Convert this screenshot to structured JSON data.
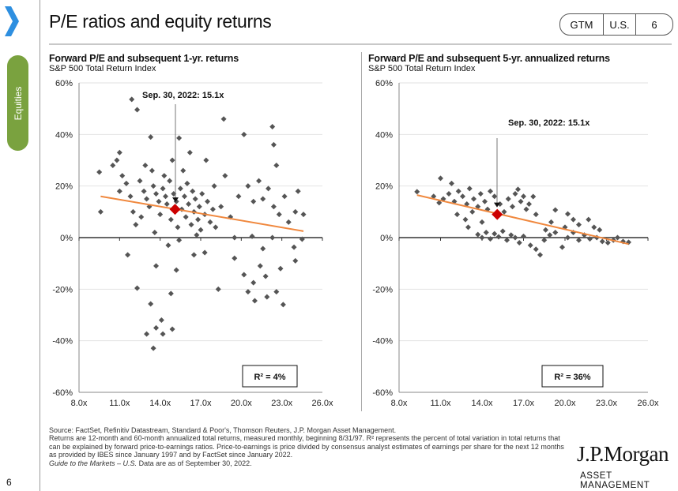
{
  "header": {
    "title": "P/E ratios and equity returns",
    "badge": [
      "GTM",
      "U.S.",
      "6"
    ],
    "section_tab": "Equities",
    "page_number": "6"
  },
  "colors": {
    "points": "#555555",
    "trend": "#f0883e",
    "current": "#cc0000",
    "chevron": "#2e8fe0",
    "tab": "#7aa23f"
  },
  "footer": {
    "source": "Source: FactSet, Refinitiv Datastream, Standard & Poor's, Thomson Reuters, J.P. Morgan Asset Management.",
    "note": "Returns are 12-month and 60-month annualized total returns, measured monthly, beginning 8/31/97. R² represents the percent of total variation in total returns that can be explained by forward price-to-earnings ratios. Price-to-earnings is price divided by consensus analyst estimates of earnings per share for the next 12 months as provided by IBES since January 1997 and by FactSet since January 2022.",
    "guide_italic": "Guide to the Markets – U.S.",
    "guide_rest": " Data are as of September 30, 2022."
  },
  "logo": {
    "name": "J.P.Morgan",
    "sub": "ASSET MANAGEMENT"
  },
  "chart_data": [
    {
      "type": "scatter",
      "title": "Forward P/E and subsequent 1-yr. returns",
      "subtitle": "S&P 500 Total Return Index",
      "xlim": [
        8,
        26
      ],
      "ylim": [
        -60,
        60
      ],
      "xticks": [
        "8.0x",
        "11.0x",
        "14.0x",
        "17.0x",
        "20.0x",
        "23.0x",
        "26.0x"
      ],
      "yticks": [
        "60%",
        "40%",
        "20%",
        "0%",
        "-20%",
        "-40%",
        "-60%"
      ],
      "grid": "horizontal",
      "annotation": "Sep. 30, 2022: 15.1x",
      "r2_label": "R² = 4%",
      "current": [
        15.1,
        11
      ],
      "trend": [
        [
          9.6,
          16
        ],
        [
          24.6,
          2.5
        ]
      ],
      "points": [
        [
          9.5,
          25.4
        ],
        [
          9.6,
          10
        ],
        [
          11.9,
          53.6
        ],
        [
          12.3,
          49.6
        ],
        [
          11.0,
          33
        ],
        [
          13.3,
          39
        ],
        [
          15.4,
          38.6
        ],
        [
          18.7,
          46
        ],
        [
          20.2,
          40
        ],
        [
          22.3,
          43
        ],
        [
          22.4,
          36
        ],
        [
          24.2,
          18
        ],
        [
          24.6,
          9
        ],
        [
          24.5,
          -0.6
        ],
        [
          23.9,
          -3.7
        ],
        [
          24.0,
          -9
        ],
        [
          23.1,
          -26
        ],
        [
          22.6,
          -21
        ],
        [
          20.9,
          -17.5
        ],
        [
          20.2,
          -14.4
        ],
        [
          21.0,
          -24.5
        ],
        [
          21.4,
          -11
        ],
        [
          21.6,
          -4.3
        ],
        [
          19.5,
          -8
        ],
        [
          18.3,
          -20
        ],
        [
          16.5,
          -6.7
        ],
        [
          17.3,
          -5.8
        ],
        [
          14.8,
          -21.7
        ],
        [
          15.2,
          -12.6
        ],
        [
          13.7,
          -11
        ],
        [
          12.3,
          -19.6
        ],
        [
          11.6,
          -6.7
        ],
        [
          13.3,
          -25.7
        ],
        [
          13.0,
          -37.4
        ],
        [
          13.5,
          -42.9
        ],
        [
          14.1,
          -32
        ],
        [
          14.2,
          -37.4
        ],
        [
          14.9,
          -35.5
        ],
        [
          13.7,
          -35
        ],
        [
          12.5,
          22
        ],
        [
          12.8,
          18
        ],
        [
          13.0,
          15
        ],
        [
          13.2,
          12
        ],
        [
          13.5,
          20
        ],
        [
          13.7,
          17
        ],
        [
          13.9,
          14
        ],
        [
          14.0,
          9
        ],
        [
          14.2,
          19
        ],
        [
          14.4,
          16
        ],
        [
          14.5,
          13
        ],
        [
          14.7,
          22
        ],
        [
          14.8,
          7
        ],
        [
          15.0,
          17
        ],
        [
          15.2,
          14
        ],
        [
          15.3,
          4
        ],
        [
          15.5,
          19
        ],
        [
          15.6,
          11
        ],
        [
          15.8,
          16
        ],
        [
          15.9,
          8
        ],
        [
          16.0,
          21
        ],
        [
          16.1,
          13
        ],
        [
          16.3,
          5
        ],
        [
          16.4,
          18
        ],
        [
          16.5,
          10
        ],
        [
          16.6,
          15
        ],
        [
          16.8,
          7
        ],
        [
          16.9,
          12
        ],
        [
          17.0,
          3
        ],
        [
          17.1,
          17
        ],
        [
          17.3,
          9
        ],
        [
          17.5,
          14
        ],
        [
          17.7,
          6
        ],
        [
          17.9,
          11
        ],
        [
          18.1,
          4
        ],
        [
          12.0,
          10
        ],
        [
          11.8,
          16
        ],
        [
          12.2,
          5
        ],
        [
          12.6,
          8
        ],
        [
          11.5,
          21
        ],
        [
          11.2,
          24
        ],
        [
          12.9,
          28
        ],
        [
          13.4,
          26
        ],
        [
          14.3,
          24
        ],
        [
          14.9,
          30
        ],
        [
          15.7,
          26
        ],
        [
          16.2,
          33
        ],
        [
          17.4,
          30
        ],
        [
          18.0,
          20
        ],
        [
          18.5,
          12
        ],
        [
          18.8,
          24
        ],
        [
          19.2,
          8
        ],
        [
          19.8,
          16
        ],
        [
          20.5,
          20
        ],
        [
          20.9,
          14
        ],
        [
          21.3,
          22
        ],
        [
          21.6,
          15
        ],
        [
          22.0,
          19
        ],
        [
          22.4,
          12
        ],
        [
          22.6,
          28
        ],
        [
          22.8,
          9
        ],
        [
          23.2,
          16
        ],
        [
          23.5,
          6
        ],
        [
          24.0,
          10
        ],
        [
          11.0,
          18
        ],
        [
          10.5,
          28
        ],
        [
          10.8,
          30
        ],
        [
          13.6,
          2
        ],
        [
          14.6,
          -3
        ],
        [
          15.4,
          -1
        ],
        [
          16.7,
          1
        ],
        [
          19.5,
          0
        ],
        [
          20.8,
          0.5
        ],
        [
          22.3,
          0
        ],
        [
          21.8,
          -15
        ],
        [
          22.9,
          -12
        ],
        [
          20.5,
          -21
        ],
        [
          21.9,
          -23
        ]
      ]
    },
    {
      "type": "scatter",
      "title": "Forward P/E and subsequent 5-yr. annualized returns",
      "subtitle": "S&P 500 Total Return Index",
      "xlim": [
        8,
        26
      ],
      "ylim": [
        -60,
        60
      ],
      "xticks": [
        "8.0x",
        "11.0x",
        "14.0x",
        "17.0x",
        "20.0x",
        "23.0x",
        "26.0x"
      ],
      "yticks": [
        "60%",
        "40%",
        "20%",
        "0%",
        "-20%",
        "-40%",
        "-60%"
      ],
      "grid": "horizontal",
      "annotation": "Sep. 30, 2022: 15.1x",
      "r2_label": "R² = 36%",
      "current": [
        15.1,
        9
      ],
      "trend": [
        [
          9.3,
          16.5
        ],
        [
          24.6,
          -2.5
        ]
      ],
      "points": [
        [
          9.3,
          17.8
        ],
        [
          11.0,
          23
        ],
        [
          11.8,
          21
        ],
        [
          10.9,
          13.5
        ],
        [
          10.5,
          16
        ],
        [
          11.2,
          15
        ],
        [
          11.6,
          17
        ],
        [
          12.0,
          14
        ],
        [
          12.3,
          18
        ],
        [
          12.6,
          16
        ],
        [
          12.9,
          13
        ],
        [
          13.1,
          19
        ],
        [
          13.4,
          15
        ],
        [
          13.7,
          12
        ],
        [
          13.9,
          17
        ],
        [
          14.2,
          14
        ],
        [
          14.4,
          11
        ],
        [
          14.6,
          18
        ],
        [
          14.9,
          16
        ],
        [
          15.3,
          13
        ],
        [
          15.6,
          10
        ],
        [
          15.9,
          15
        ],
        [
          16.2,
          12
        ],
        [
          16.4,
          17
        ],
        [
          16.6,
          18.7
        ],
        [
          16.8,
          14
        ],
        [
          17.0,
          16
        ],
        [
          17.2,
          11
        ],
        [
          17.4,
          13
        ],
        [
          17.7,
          15.9
        ],
        [
          17.9,
          9
        ],
        [
          12.2,
          9
        ],
        [
          12.8,
          7
        ],
        [
          13.0,
          4
        ],
        [
          13.3,
          10
        ],
        [
          14.0,
          6
        ],
        [
          13.7,
          1.2
        ],
        [
          14.0,
          0
        ],
        [
          14.3,
          2
        ],
        [
          14.6,
          -0.5
        ],
        [
          14.9,
          1.5
        ],
        [
          15.2,
          0.3
        ],
        [
          15.5,
          2.5
        ],
        [
          15.8,
          -1
        ],
        [
          16.1,
          1
        ],
        [
          16.4,
          0
        ],
        [
          16.7,
          -2
        ],
        [
          17.0,
          0.5
        ],
        [
          17.5,
          -3
        ],
        [
          17.9,
          -4.5
        ],
        [
          18.2,
          -6.7
        ],
        [
          18.5,
          -1
        ],
        [
          18.9,
          1
        ],
        [
          19.3,
          2
        ],
        [
          19.8,
          -3.7
        ],
        [
          20.2,
          0
        ],
        [
          20.6,
          2
        ],
        [
          21.0,
          -1
        ],
        [
          21.4,
          1
        ],
        [
          21.8,
          -0.5
        ],
        [
          22.3,
          0
        ],
        [
          22.7,
          -1.5
        ],
        [
          23.1,
          -2
        ],
        [
          23.5,
          -1
        ],
        [
          23.8,
          0
        ],
        [
          24.2,
          -1.5
        ],
        [
          24.6,
          -1.8
        ],
        [
          19.3,
          10.7
        ],
        [
          20.2,
          9.2
        ],
        [
          20.6,
          7
        ],
        [
          21.0,
          5
        ],
        [
          21.7,
          7
        ],
        [
          22.1,
          4
        ],
        [
          22.5,
          3
        ],
        [
          20.0,
          4
        ],
        [
          19.0,
          6
        ],
        [
          18.6,
          3
        ]
      ]
    }
  ]
}
